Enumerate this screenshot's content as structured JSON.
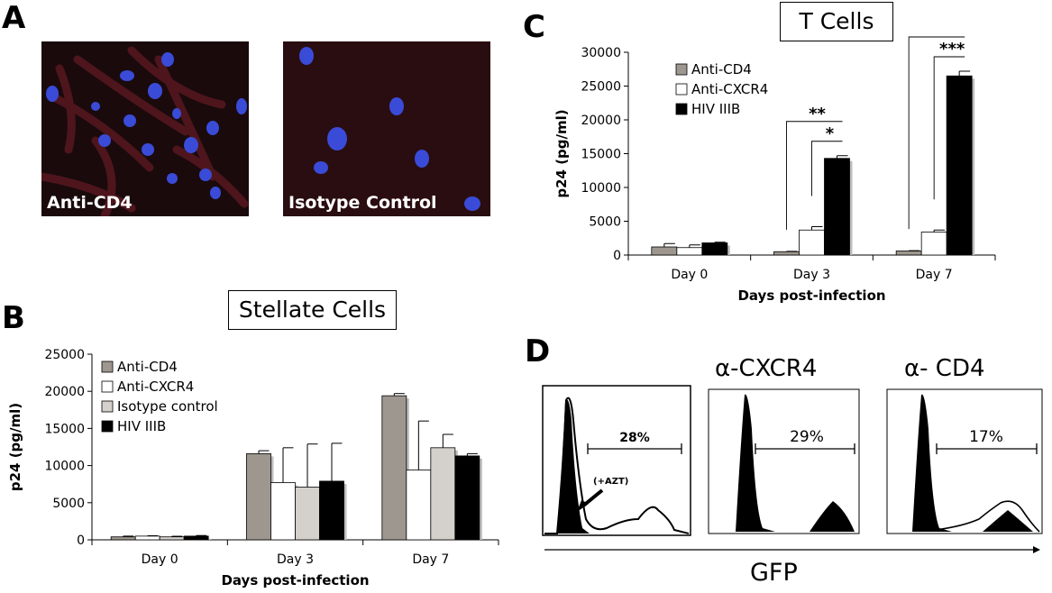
{
  "panels": {
    "a": {
      "letter": "A",
      "left_label": "Anti-CD4",
      "right_label": "Isotype Control"
    },
    "b": {
      "letter": "B",
      "title": "Stellate Cells"
    },
    "c": {
      "letter": "C",
      "title": "T Cells"
    },
    "d": {
      "letter": "D",
      "headers": [
        "",
        "α-CXCR4",
        "α- CD4"
      ],
      "percents": [
        "28%",
        "29%",
        "17%"
      ],
      "annotation": "(+AZT)",
      "xlabel": "GFP"
    }
  },
  "chart_data": [
    {
      "id": "stellate",
      "type": "bar",
      "title": "Stellate Cells",
      "xlabel": "Days post-infection",
      "ylabel": "p24 (pg/ml)",
      "ylim": [
        0,
        25000
      ],
      "yticks": [
        0,
        5000,
        10000,
        15000,
        20000,
        25000
      ],
      "categories": [
        "Day 0",
        "Day 3",
        "Day 7"
      ],
      "legend_position": "top-left",
      "grid": false,
      "series": [
        {
          "name": "Anti-CD4",
          "color": "#9e9790",
          "values": [
            400,
            11600,
            19400
          ],
          "errors": [
            100,
            400,
            300
          ]
        },
        {
          "name": "Anti-CXCR4",
          "color": "#ffffff",
          "values": [
            500,
            7700,
            9400
          ],
          "errors": [
            50,
            4700,
            6600
          ]
        },
        {
          "name": "Isotype control",
          "color": "#d4d0cc",
          "values": [
            400,
            7100,
            12400
          ],
          "errors": [
            80,
            5800,
            1800
          ]
        },
        {
          "name": "HIV IIIB",
          "color": "#000000",
          "values": [
            500,
            7900,
            11300
          ],
          "errors": [
            80,
            5100,
            300
          ]
        }
      ]
    },
    {
      "id": "tcells",
      "type": "bar",
      "title": "T Cells",
      "xlabel": "Days post-infection",
      "ylabel": "p24 (pg/ml)",
      "ylim": [
        0,
        30000
      ],
      "yticks": [
        0,
        5000,
        10000,
        15000,
        20000,
        25000,
        30000
      ],
      "categories": [
        "Day 0",
        "Day 3",
        "Day 7"
      ],
      "legend_position": "top-left",
      "grid": false,
      "series": [
        {
          "name": "Anti-CD4",
          "color": "#9e9790",
          "values": [
            1200,
            500,
            600
          ],
          "errors": [
            500,
            50,
            50
          ]
        },
        {
          "name": "Anti-CXCR4",
          "color": "#ffffff",
          "values": [
            1100,
            3700,
            3400
          ],
          "errors": [
            400,
            500,
            300
          ]
        },
        {
          "name": "HIV IIIB",
          "color": "#000000",
          "values": [
            1800,
            14300,
            26500
          ],
          "errors": [
            100,
            400,
            700
          ]
        }
      ],
      "significance": [
        {
          "category": 1,
          "from": 0,
          "to": 2,
          "label": "**"
        },
        {
          "category": 1,
          "from": 1,
          "to": 2,
          "label": "*"
        },
        {
          "category": 2,
          "from": 0,
          "to": 2,
          "label": "****"
        },
        {
          "category": 2,
          "from": 1,
          "to": 2,
          "label": "***"
        }
      ]
    }
  ]
}
